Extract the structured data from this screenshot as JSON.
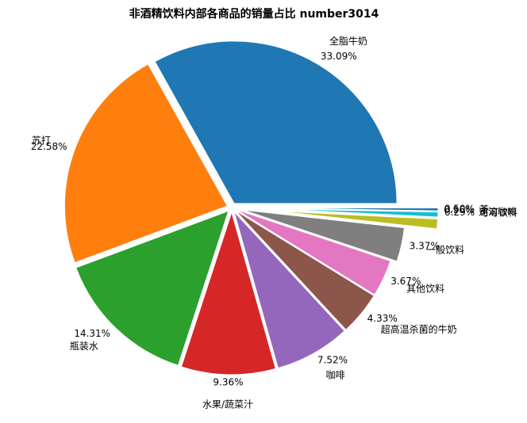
{
  "chart_data": {
    "type": "pie",
    "title": "非酒精饮料内部各商品的销量占比  number3014",
    "categories": [
      "全脂牛奶",
      "苏打",
      "瓶装水",
      "水果/蔬菜汁",
      "咖啡",
      "超高温杀菌的牛奶",
      "其他饮料",
      "一般饮料",
      "速溶咖啡",
      "茶",
      "可可饮料"
    ],
    "values": [
      33.09,
      22.58,
      14.31,
      9.36,
      7.52,
      4.33,
      3.67,
      3.37,
      0.96,
      0.5,
      0.29
    ],
    "value_labels": [
      "33.09%",
      "22.58%",
      "14.31%",
      "9.36%",
      "7.52%",
      "4.33%",
      "3.67%",
      "3.37%",
      "0.96%",
      "0.50%",
      "0.29%"
    ],
    "colors": [
      "#1f77b4",
      "#ff7f0e",
      "#2ca02c",
      "#d62728",
      "#9467bd",
      "#8c564b",
      "#e377c2",
      "#7f7f7f",
      "#bcbd22",
      "#17becf",
      "#1f77b4"
    ]
  }
}
